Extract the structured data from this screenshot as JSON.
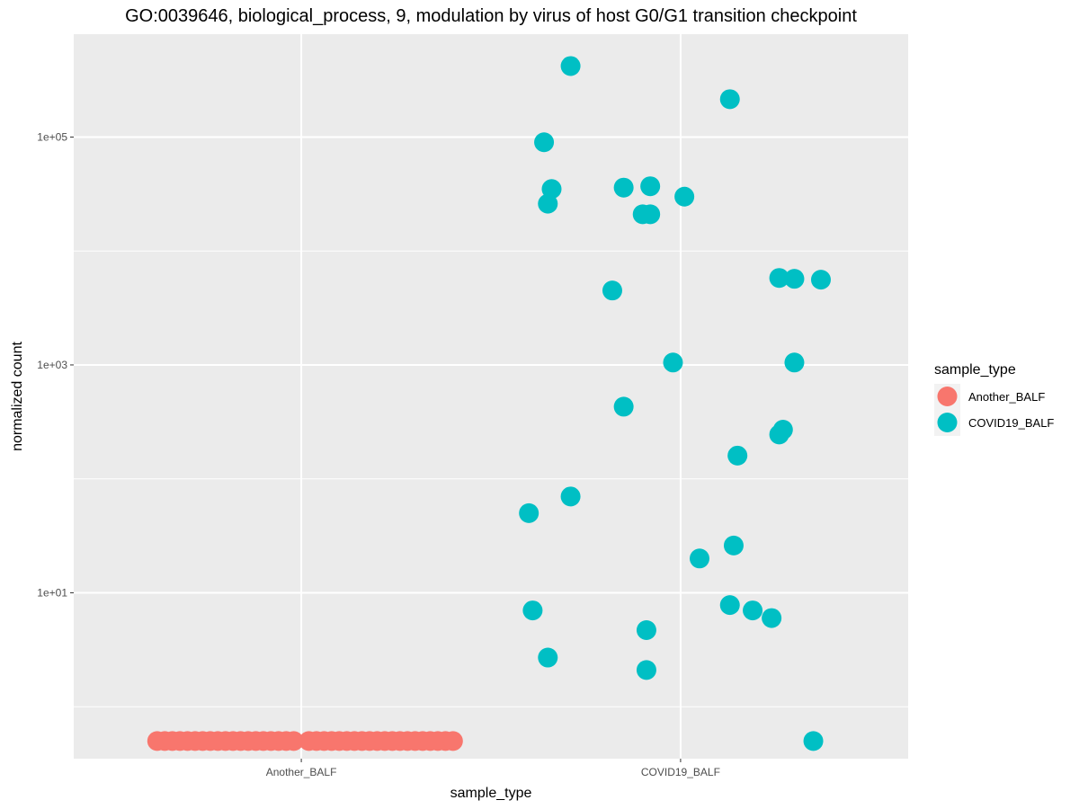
{
  "chart_data": {
    "type": "scatter",
    "title": "GO:0039646, biological_process, 9, modulation by virus of host G0/G1 transition checkpoint",
    "xlabel": "sample_type",
    "ylabel": "normalized count",
    "y_scale": "log10",
    "ylim": [
      0.35,
      800000
    ],
    "y_ticks": [
      10,
      1000,
      100000
    ],
    "y_tick_labels": [
      "1e+01",
      "1e+03",
      "1e+05"
    ],
    "categories": [
      "Another_BALF",
      "COVID19_BALF"
    ],
    "grid": true,
    "legend": {
      "title": "sample_type",
      "position": "right",
      "entries": [
        "Another_BALF",
        "COVID19_BALF"
      ]
    },
    "colors": {
      "Another_BALF": "#F8766D",
      "COVID19_BALF": "#00BFC4",
      "panel": "#EBEBEB",
      "grid": "#FFFFFF"
    },
    "series": [
      {
        "name": "Another_BALF",
        "points": [
          {
            "x": -0.38,
            "y": 0.5
          },
          {
            "x": -0.36,
            "y": 0.5
          },
          {
            "x": -0.34,
            "y": 0.5
          },
          {
            "x": -0.32,
            "y": 0.5
          },
          {
            "x": -0.3,
            "y": 0.5
          },
          {
            "x": -0.28,
            "y": 0.5
          },
          {
            "x": -0.26,
            "y": 0.5
          },
          {
            "x": -0.24,
            "y": 0.5
          },
          {
            "x": -0.22,
            "y": 0.5
          },
          {
            "x": -0.2,
            "y": 0.5
          },
          {
            "x": -0.18,
            "y": 0.5
          },
          {
            "x": -0.16,
            "y": 0.5
          },
          {
            "x": -0.14,
            "y": 0.5
          },
          {
            "x": -0.12,
            "y": 0.5
          },
          {
            "x": -0.1,
            "y": 0.5
          },
          {
            "x": -0.08,
            "y": 0.5
          },
          {
            "x": -0.06,
            "y": 0.5
          },
          {
            "x": -0.04,
            "y": 0.5
          },
          {
            "x": -0.02,
            "y": 0.5
          },
          {
            "x": 0.02,
            "y": 0.5
          },
          {
            "x": 0.04,
            "y": 0.5
          },
          {
            "x": 0.06,
            "y": 0.5
          },
          {
            "x": 0.08,
            "y": 0.5
          },
          {
            "x": 0.1,
            "y": 0.5
          },
          {
            "x": 0.12,
            "y": 0.5
          },
          {
            "x": 0.14,
            "y": 0.5
          },
          {
            "x": 0.16,
            "y": 0.5
          },
          {
            "x": 0.18,
            "y": 0.5
          },
          {
            "x": 0.2,
            "y": 0.5
          },
          {
            "x": 0.22,
            "y": 0.5
          },
          {
            "x": 0.24,
            "y": 0.5
          },
          {
            "x": 0.26,
            "y": 0.5
          },
          {
            "x": 0.28,
            "y": 0.5
          },
          {
            "x": 0.3,
            "y": 0.5
          },
          {
            "x": 0.32,
            "y": 0.5
          },
          {
            "x": 0.34,
            "y": 0.5
          },
          {
            "x": 0.36,
            "y": 0.5
          },
          {
            "x": 0.38,
            "y": 0.5
          },
          {
            "x": 0.4,
            "y": 0.5
          }
        ]
      },
      {
        "name": "COVID19_BALF",
        "points": [
          {
            "x": 0.71,
            "y": 420000
          },
          {
            "x": 1.13,
            "y": 215000
          },
          {
            "x": 0.64,
            "y": 90000
          },
          {
            "x": 0.66,
            "y": 35000
          },
          {
            "x": 0.65,
            "y": 26000
          },
          {
            "x": 0.85,
            "y": 36000
          },
          {
            "x": 0.92,
            "y": 37000
          },
          {
            "x": 0.9,
            "y": 21000
          },
          {
            "x": 0.92,
            "y": 21000
          },
          {
            "x": 1.01,
            "y": 30000
          },
          {
            "x": 0.82,
            "y": 4500
          },
          {
            "x": 1.26,
            "y": 5800
          },
          {
            "x": 1.3,
            "y": 5700
          },
          {
            "x": 1.37,
            "y": 5600
          },
          {
            "x": 0.98,
            "y": 1050
          },
          {
            "x": 1.3,
            "y": 1050
          },
          {
            "x": 0.85,
            "y": 430
          },
          {
            "x": 1.27,
            "y": 270
          },
          {
            "x": 1.26,
            "y": 245
          },
          {
            "x": 1.15,
            "y": 160
          },
          {
            "x": 0.71,
            "y": 70
          },
          {
            "x": 0.6,
            "y": 50
          },
          {
            "x": 1.14,
            "y": 26
          },
          {
            "x": 1.05,
            "y": 20
          },
          {
            "x": 1.13,
            "y": 7.8
          },
          {
            "x": 1.19,
            "y": 7
          },
          {
            "x": 1.24,
            "y": 6
          },
          {
            "x": 0.61,
            "y": 7
          },
          {
            "x": 0.91,
            "y": 4.7
          },
          {
            "x": 0.65,
            "y": 2.7
          },
          {
            "x": 0.91,
            "y": 2.1
          },
          {
            "x": 1.35,
            "y": 0.5
          }
        ]
      }
    ]
  }
}
